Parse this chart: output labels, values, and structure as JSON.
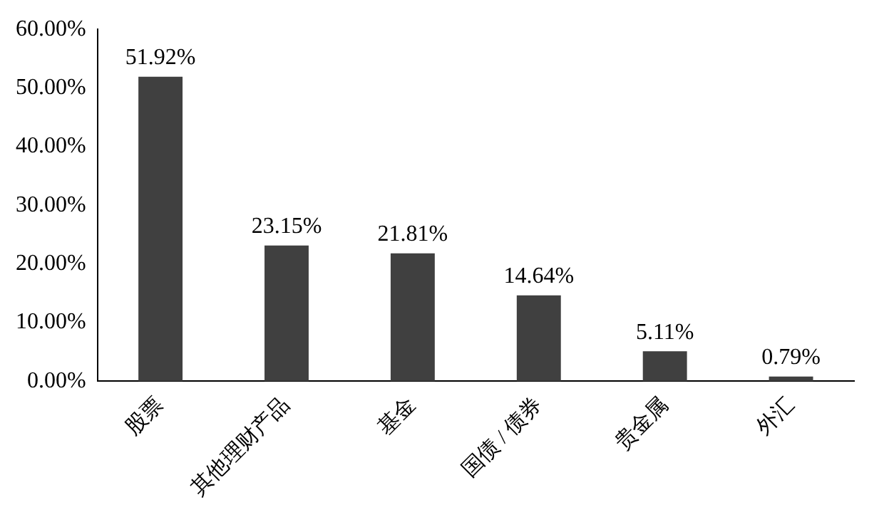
{
  "chart_data": {
    "type": "bar",
    "categories": [
      "股票",
      "其他理财产品",
      "基金",
      "国债 / 债券",
      "贵金属",
      "外汇"
    ],
    "values": [
      51.92,
      23.15,
      21.81,
      14.64,
      5.11,
      0.79
    ],
    "value_labels": [
      "51.92%",
      "23.15%",
      "21.81%",
      "14.64%",
      "5.11%",
      "0.79%"
    ],
    "color": "#404040",
    "ylim": [
      0,
      60
    ],
    "yticks": [
      {
        "value": 0,
        "label": "0.00%"
      },
      {
        "value": 10,
        "label": "10.00%"
      },
      {
        "value": 20,
        "label": "20.00%"
      },
      {
        "value": 30,
        "label": "30.00%"
      },
      {
        "value": 40,
        "label": "40.00%"
      },
      {
        "value": 50,
        "label": "50.00%"
      },
      {
        "value": 60,
        "label": "60.00%"
      }
    ],
    "grid": false,
    "legend": false
  }
}
